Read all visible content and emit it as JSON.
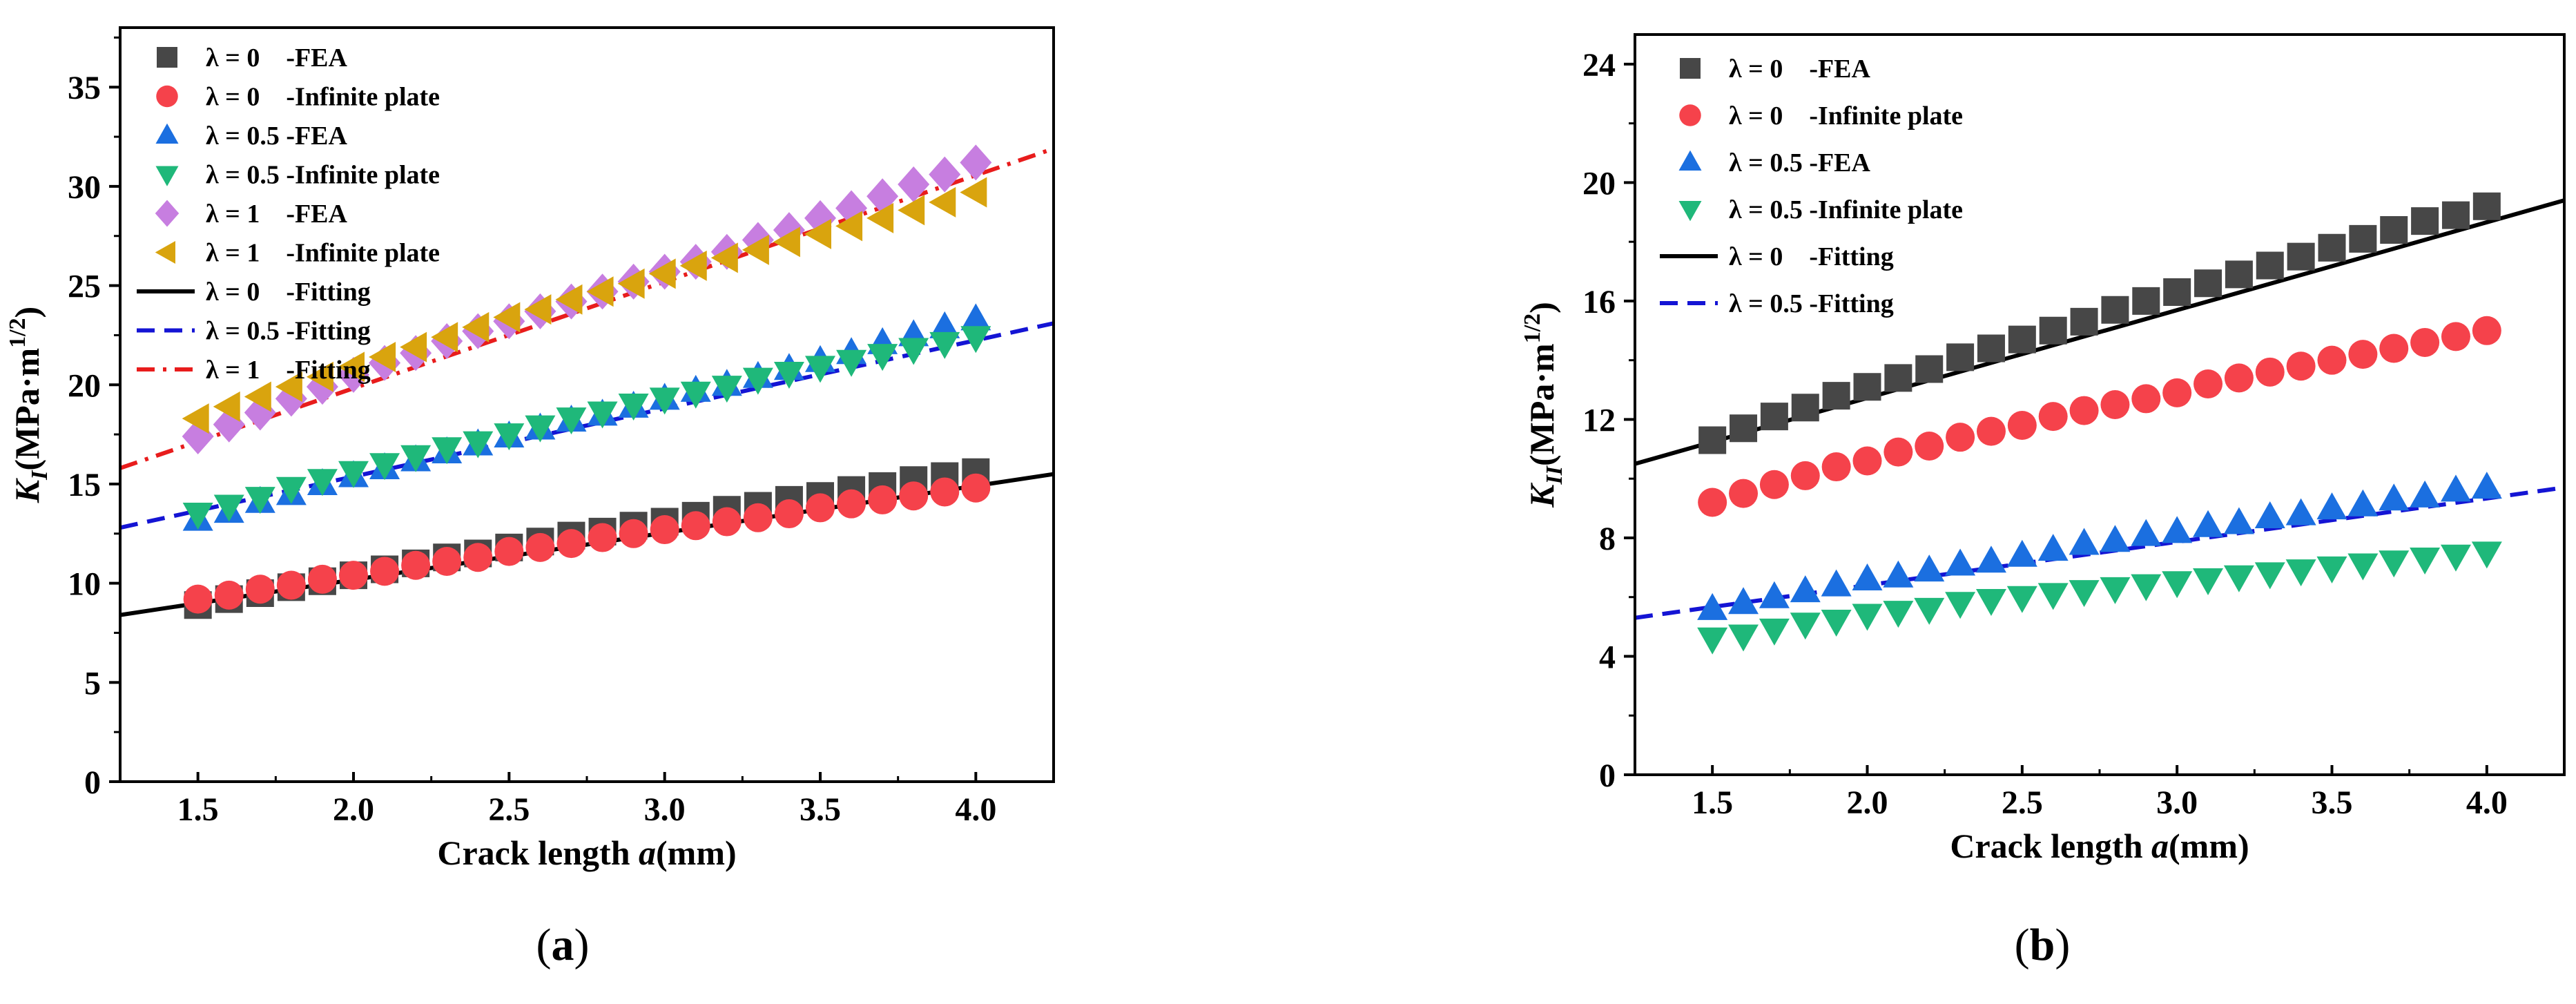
{
  "figure": {
    "panel_a_label": [
      "(",
      "a",
      ")"
    ],
    "panel_b_label": [
      "(",
      "b",
      ")"
    ]
  },
  "chart_data": [
    {
      "type": "scatter",
      "panel": "a",
      "xlabel": [
        "Crack length ",
        "a",
        "(mm)"
      ],
      "ylabel": [
        "K",
        "I",
        "(MPa·m",
        "1/2",
        ")"
      ],
      "xlim": [
        1.25,
        4.25
      ],
      "ylim": [
        0,
        38
      ],
      "xticks": [
        1.5,
        2.0,
        2.5,
        3.0,
        3.5,
        4.0
      ],
      "xtick_labels": [
        "1.5",
        "2.0",
        "2.5",
        "3.0",
        "3.5",
        "4.0"
      ],
      "yticks": [
        0,
        5,
        10,
        15,
        20,
        25,
        30,
        35
      ],
      "ytick_labels": [
        "0",
        "5",
        "10",
        "15",
        "20",
        "25",
        "30",
        "35"
      ],
      "legend_position": "top-left",
      "x": [
        1.5,
        1.6,
        1.7,
        1.8,
        1.9,
        2.0,
        2.1,
        2.2,
        2.3,
        2.4,
        2.5,
        2.6,
        2.7,
        2.8,
        2.9,
        3.0,
        3.1,
        3.2,
        3.3,
        3.4,
        3.5,
        3.6,
        3.7,
        3.8,
        3.9,
        4.0
      ],
      "series": [
        {
          "name": "λ = 0    -FEA",
          "marker": "square",
          "color": "#474747",
          "values": [
            8.9,
            9.2,
            9.5,
            9.8,
            10.1,
            10.4,
            10.7,
            11.0,
            11.3,
            11.5,
            11.8,
            12.1,
            12.4,
            12.6,
            12.9,
            13.1,
            13.4,
            13.7,
            13.9,
            14.2,
            14.4,
            14.7,
            14.9,
            15.2,
            15.4,
            15.6
          ]
        },
        {
          "name": "λ = 0    -Infinite plate",
          "marker": "circle",
          "color": "#f5424b",
          "values": [
            9.2,
            9.4,
            9.7,
            9.9,
            10.2,
            10.4,
            10.6,
            10.9,
            11.1,
            11.3,
            11.6,
            11.8,
            12.0,
            12.3,
            12.5,
            12.7,
            12.9,
            13.1,
            13.3,
            13.5,
            13.8,
            14.0,
            14.2,
            14.4,
            14.6,
            14.8
          ]
        },
        {
          "name": "λ = 0.5 -FEA",
          "marker": "triangle-up",
          "color": "#1b6fe0",
          "values": [
            13.2,
            13.6,
            14.1,
            14.5,
            15.0,
            15.4,
            15.8,
            16.2,
            16.6,
            17.0,
            17.4,
            17.8,
            18.2,
            18.5,
            18.9,
            19.3,
            19.7,
            20.0,
            20.4,
            20.8,
            21.2,
            21.6,
            22.1,
            22.5,
            22.9,
            23.3
          ]
        },
        {
          "name": "λ = 0.5 -Infinite plate",
          "marker": "triangle-down",
          "color": "#1fb87a",
          "values": [
            13.5,
            13.9,
            14.3,
            14.8,
            15.2,
            15.6,
            16.0,
            16.4,
            16.8,
            17.1,
            17.5,
            17.9,
            18.3,
            18.6,
            19.0,
            19.3,
            19.6,
            19.9,
            20.3,
            20.6,
            20.9,
            21.2,
            21.5,
            21.8,
            22.1,
            22.4
          ]
        },
        {
          "name": "λ = 1    -FEA",
          "marker": "diamond",
          "color": "#c77ee0",
          "values": [
            17.4,
            18.0,
            18.6,
            19.3,
            19.9,
            20.5,
            21.1,
            21.6,
            22.2,
            22.7,
            23.2,
            23.7,
            24.2,
            24.7,
            25.2,
            25.7,
            26.2,
            26.7,
            27.3,
            27.8,
            28.4,
            28.9,
            29.5,
            30.1,
            30.6,
            31.2
          ]
        },
        {
          "name": "λ = 1    -Infinite plate",
          "marker": "triangle-left",
          "color": "#d9a40e",
          "values": [
            18.3,
            18.9,
            19.4,
            19.9,
            20.4,
            20.9,
            21.4,
            21.9,
            22.4,
            22.9,
            23.4,
            23.8,
            24.3,
            24.7,
            25.1,
            25.6,
            26.0,
            26.4,
            26.8,
            27.2,
            27.6,
            28.0,
            28.4,
            28.8,
            29.2,
            29.7
          ]
        }
      ],
      "fits": [
        {
          "name": "λ = 0    -Fitting",
          "style": "solid",
          "color": "#000000",
          "x": [
            1.25,
            4.25
          ],
          "y": [
            8.4,
            15.5
          ]
        },
        {
          "name": "λ = 0.5 -Fitting",
          "style": "dash",
          "color": "#1414d4",
          "x": [
            1.25,
            4.25
          ],
          "y": [
            12.8,
            23.1
          ]
        },
        {
          "name": "λ = 1    -Fitting",
          "style": "dash-dot",
          "color": "#e81c1c",
          "x": [
            1.25,
            4.25
          ],
          "y": [
            15.8,
            31.9
          ]
        }
      ]
    },
    {
      "type": "scatter",
      "panel": "b",
      "xlabel": [
        "Crack length ",
        "a",
        "(mm)"
      ],
      "ylabel": [
        "K",
        "II",
        "(MPa·m",
        "1/2",
        ")"
      ],
      "xlim": [
        1.25,
        4.25
      ],
      "ylim": [
        0,
        25
      ],
      "xticks": [
        1.5,
        2.0,
        2.5,
        3.0,
        3.5,
        4.0
      ],
      "xtick_labels": [
        "1.5",
        "2.0",
        "2.5",
        "3.0",
        "3.5",
        "4.0"
      ],
      "yticks": [
        0,
        4,
        8,
        12,
        16,
        20,
        24
      ],
      "ytick_labels": [
        "0",
        "4",
        "8",
        "12",
        "16",
        "20",
        "24"
      ],
      "legend_position": "top-left",
      "x": [
        1.5,
        1.6,
        1.7,
        1.8,
        1.9,
        2.0,
        2.1,
        2.2,
        2.3,
        2.4,
        2.5,
        2.6,
        2.7,
        2.8,
        2.9,
        3.0,
        3.1,
        3.2,
        3.3,
        3.4,
        3.5,
        3.6,
        3.7,
        3.8,
        3.9,
        4.0
      ],
      "series": [
        {
          "name": "λ = 0    -FEA",
          "marker": "square",
          "color": "#474747",
          "values": [
            11.3,
            11.7,
            12.1,
            12.4,
            12.8,
            13.1,
            13.4,
            13.7,
            14.1,
            14.4,
            14.7,
            15.0,
            15.3,
            15.7,
            16.0,
            16.3,
            16.6,
            16.9,
            17.2,
            17.5,
            17.8,
            18.1,
            18.4,
            18.7,
            18.9,
            19.2
          ]
        },
        {
          "name": "λ = 0    -Infinite plate",
          "marker": "circle",
          "color": "#f5424b",
          "values": [
            9.2,
            9.5,
            9.8,
            10.1,
            10.4,
            10.6,
            10.9,
            11.1,
            11.4,
            11.6,
            11.8,
            12.1,
            12.3,
            12.5,
            12.7,
            12.9,
            13.2,
            13.4,
            13.6,
            13.8,
            14.0,
            14.2,
            14.4,
            14.6,
            14.8,
            15.0
          ]
        },
        {
          "name": "λ = 0.5 -FEA",
          "marker": "triangle-up",
          "color": "#1b6fe0",
          "values": [
            5.6,
            5.8,
            6.0,
            6.2,
            6.4,
            6.6,
            6.7,
            6.9,
            7.1,
            7.2,
            7.4,
            7.6,
            7.8,
            7.9,
            8.1,
            8.2,
            8.4,
            8.5,
            8.7,
            8.8,
            9.0,
            9.1,
            9.3,
            9.4,
            9.6,
            9.7
          ]
        },
        {
          "name": "λ = 0.5 -Infinite plate",
          "marker": "triangle-down",
          "color": "#1fb87a",
          "values": [
            4.6,
            4.7,
            4.9,
            5.1,
            5.2,
            5.4,
            5.5,
            5.6,
            5.8,
            5.9,
            6.0,
            6.1,
            6.2,
            6.3,
            6.4,
            6.5,
            6.6,
            6.7,
            6.8,
            6.9,
            7.0,
            7.1,
            7.2,
            7.3,
            7.4,
            7.5
          ]
        }
      ],
      "fits": [
        {
          "name": "λ = 0    -Fitting",
          "style": "solid",
          "color": "#000000",
          "x": [
            1.25,
            4.25
          ],
          "y": [
            10.5,
            19.4
          ]
        },
        {
          "name": "λ = 0.5 -Fitting",
          "style": "dash",
          "color": "#1414d4",
          "x": [
            1.25,
            4.25
          ],
          "y": [
            5.3,
            9.7
          ]
        }
      ]
    }
  ]
}
